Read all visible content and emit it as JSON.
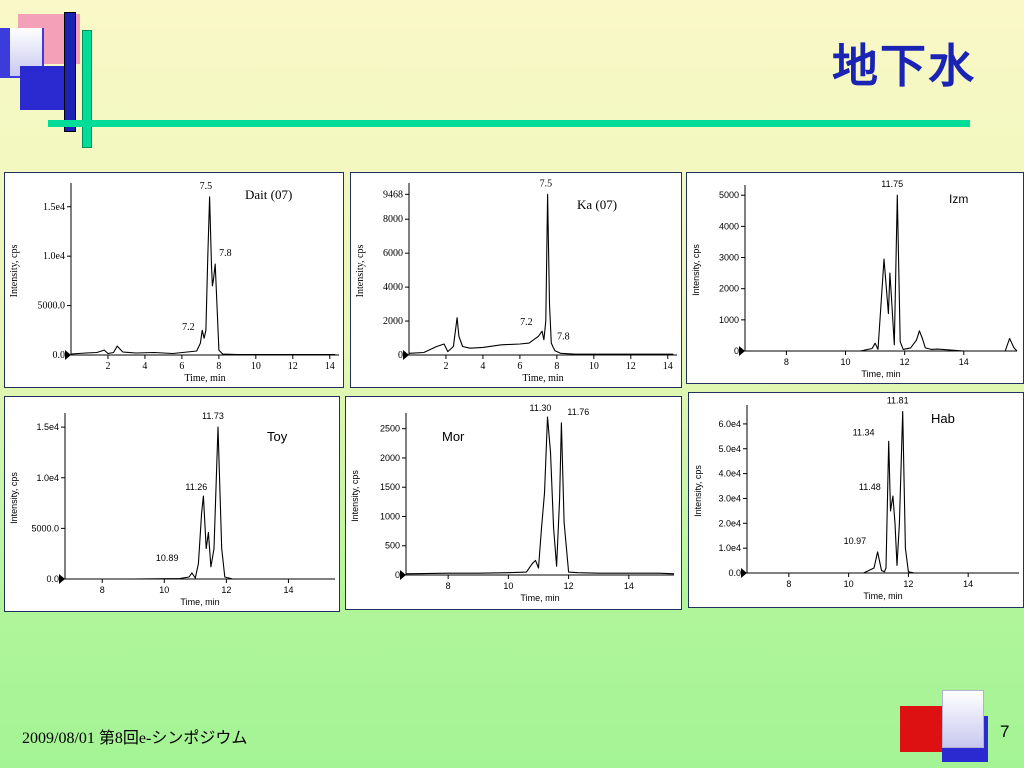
{
  "slide": {
    "title": "地下水",
    "footer_text": "2009/08/01  第8回e-シンポジウム",
    "page_number": "7",
    "colors": {
      "title": "#1a23b3",
      "accent_line": "#00dd99",
      "deco_red": "#dd1111",
      "deco_blue": "#3333cc"
    }
  },
  "chart_data": [
    {
      "type": "line",
      "label": "Dait (07)",
      "xlabel": "Time, min",
      "ylabel": "Intensity, cps",
      "xlim": [
        0,
        14.5
      ],
      "ylim": [
        0,
        17000
      ],
      "xticks": [
        "2",
        "4",
        "6",
        "8",
        "10",
        "12",
        "14"
      ],
      "yticks": [
        "0.0",
        "5000.0",
        "1.0e4",
        "1.5e4"
      ],
      "peak_labels": [
        "7.5",
        "7.8",
        "7.2"
      ],
      "series": [
        {
          "x": [
            0,
            0.8,
            1.4,
            1.8,
            2.0,
            2.3,
            2.5,
            2.8,
            3.5,
            4.5,
            5.5,
            6.3,
            6.8,
            7.0,
            7.1,
            7.2,
            7.3,
            7.4,
            7.5,
            7.6,
            7.65,
            7.7,
            7.8,
            7.9,
            8.0,
            8.2,
            9,
            10,
            11,
            12,
            13,
            14.3
          ],
          "y": [
            100,
            200,
            250,
            500,
            150,
            250,
            900,
            300,
            200,
            250,
            150,
            300,
            400,
            1200,
            2500,
            1700,
            2500,
            10000,
            16000,
            9000,
            7000,
            7500,
            9200,
            5000,
            500,
            100,
            50,
            50,
            50,
            50,
            50,
            50
          ]
        }
      ]
    },
    {
      "type": "line",
      "label": "Ka (07)",
      "xlabel": "Time, min",
      "ylabel": "Intensity, cps",
      "xlim": [
        0,
        14.5
      ],
      "ylim": [
        0,
        9900
      ],
      "xticks": [
        "2",
        "4",
        "6",
        "8",
        "10",
        "12",
        "14"
      ],
      "yticks": [
        "0",
        "2000",
        "4000",
        "6000",
        "8000",
        "9468"
      ],
      "peak_labels": [
        "7.5",
        "7.2",
        "7.8"
      ],
      "series": [
        {
          "x": [
            0,
            0.8,
            1.5,
            1.9,
            2.1,
            2.4,
            2.6,
            2.7,
            2.9,
            3.3,
            4,
            5,
            6,
            6.5,
            7.0,
            7.2,
            7.3,
            7.4,
            7.5,
            7.6,
            7.7,
            7.8,
            7.9,
            8.2,
            9,
            10,
            11,
            12,
            13,
            14.3
          ],
          "y": [
            100,
            150,
            500,
            650,
            200,
            500,
            2200,
            1100,
            500,
            400,
            450,
            600,
            650,
            700,
            1100,
            1400,
            900,
            2000,
            9468,
            3000,
            700,
            450,
            250,
            100,
            50,
            50,
            50,
            50,
            50,
            50
          ]
        }
      ]
    },
    {
      "type": "line",
      "label": "Izm",
      "xlabel": "Time, min",
      "ylabel": "Intensity, cps",
      "xlim": [
        6.6,
        15.8
      ],
      "ylim": [
        0,
        5200
      ],
      "xticks": [
        "8",
        "10",
        "12",
        "14"
      ],
      "yticks": [
        "0",
        "1000",
        "2000",
        "3000",
        "4000",
        "5000"
      ],
      "peak_labels": [
        "11.75"
      ],
      "series": [
        {
          "x": [
            6.6,
            9,
            10.5,
            10.9,
            11.0,
            11.1,
            11.2,
            11.3,
            11.35,
            11.45,
            11.5,
            11.55,
            11.65,
            11.75,
            11.85,
            11.95,
            12.2,
            12.4,
            12.5,
            12.6,
            12.7,
            12.9,
            13.1,
            14,
            15.4,
            15.55,
            15.7,
            15.8
          ],
          "y": [
            0,
            0,
            0,
            80,
            250,
            50,
            1500,
            2950,
            2400,
            1200,
            2500,
            1800,
            200,
            5000,
            300,
            50,
            100,
            350,
            650,
            400,
            100,
            50,
            60,
            0,
            0,
            400,
            100,
            0
          ]
        }
      ]
    },
    {
      "type": "line",
      "label": "Toy",
      "xlabel": "Time, min",
      "ylabel": "Intensity, cps",
      "xlim": [
        6.8,
        15.5
      ],
      "ylim": [
        0,
        16000
      ],
      "xticks": [
        "8",
        "10",
        "12",
        "14"
      ],
      "yticks": [
        "0.0",
        "5000.0",
        "1.0e4",
        "1.5e4"
      ],
      "peak_labels": [
        "11.73",
        "11.26",
        "10.89"
      ],
      "series": [
        {
          "x": [
            6.8,
            9,
            10.5,
            10.8,
            10.89,
            11.0,
            11.1,
            11.2,
            11.26,
            11.35,
            11.42,
            11.5,
            11.6,
            11.73,
            11.85,
            11.95,
            12.2,
            15.5
          ],
          "y": [
            0,
            0,
            50,
            200,
            600,
            100,
            1500,
            6500,
            8200,
            3000,
            4600,
            1200,
            3000,
            15000,
            3000,
            200,
            0,
            0
          ]
        }
      ]
    },
    {
      "type": "line",
      "label": "Mor",
      "xlabel": "Time, min",
      "ylabel": "Intensity, cps",
      "xlim": [
        6.6,
        15.5
      ],
      "ylim": [
        0,
        2700
      ],
      "xticks": [
        "8",
        "10",
        "12",
        "14"
      ],
      "yticks": [
        "0",
        "500",
        "1000",
        "1500",
        "2000",
        "2500"
      ],
      "peak_labels": [
        "11.30",
        "11.76"
      ],
      "series": [
        {
          "x": [
            6.6,
            8,
            9,
            10,
            10.6,
            10.8,
            10.9,
            11.0,
            11.1,
            11.2,
            11.3,
            11.4,
            11.5,
            11.6,
            11.7,
            11.76,
            11.85,
            12.0,
            12.3,
            13,
            14,
            15,
            15.5
          ],
          "y": [
            20,
            30,
            30,
            40,
            50,
            200,
            250,
            120,
            800,
            1400,
            2700,
            2100,
            800,
            150,
            1300,
            2600,
            900,
            50,
            40,
            30,
            30,
            30,
            20
          ]
        }
      ]
    },
    {
      "type": "line",
      "label": "Hab",
      "xlabel": "Time, min",
      "ylabel": "Intensity, cps",
      "xlim": [
        6.6,
        15.7
      ],
      "ylim": [
        0,
        66000
      ],
      "xticks": [
        "8",
        "10",
        "12",
        "14"
      ],
      "yticks": [
        "0.0",
        "1.0e4",
        "2.0e4",
        "3.0e4",
        "4.0e4",
        "5.0e4",
        "6.0e4"
      ],
      "peak_labels": [
        "11.81",
        "11.34",
        "11.48",
        "10.97"
      ],
      "series": [
        {
          "x": [
            6.6,
            10.5,
            10.85,
            10.97,
            11.1,
            11.2,
            11.25,
            11.34,
            11.4,
            11.48,
            11.55,
            11.62,
            11.7,
            11.81,
            11.9,
            12.0,
            12.2,
            15.7
          ],
          "y": [
            0,
            0,
            2000,
            8500,
            1000,
            500,
            2000,
            53000,
            25000,
            31000,
            20000,
            3000,
            20000,
            65000,
            10000,
            500,
            0,
            0
          ]
        }
      ]
    }
  ]
}
